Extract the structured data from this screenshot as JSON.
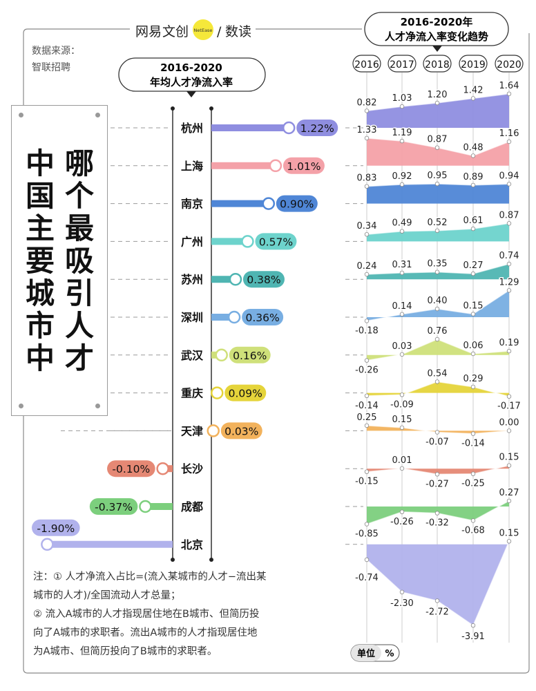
{
  "brand": {
    "left": "网易",
    "mid": "文创",
    "badge": "NetEase",
    "slash": "/",
    "right": "数读"
  },
  "source": {
    "line1": "数据来源：",
    "line2": "智联招聘"
  },
  "title": {
    "col1": "中国主要城市中",
    "col2": "哪个最吸引人才"
  },
  "bar_header": {
    "line1": "2016-2020",
    "line2": "年均人才净流入率"
  },
  "trend_header": {
    "line1": "2016-2020年",
    "line2": "人才净流入率变化趋势"
  },
  "unit": {
    "label": "单位",
    "value": "%"
  },
  "notes": [
    "注：① 人才净流入占比=(流入某城市的人才−流出某",
    "城市的人才)/全国流动人才总量；",
    "② 流入A城市的人才指现居住地在B城市、但简历投",
    "向了A城市的求职者。流出A城市的人才指现居住地",
    "为A城市、但简历投向了B城市的求职者。"
  ],
  "colors": {
    "杭州": "#8f8ee0",
    "上海": "#f4a1a8",
    "南京": "#4f86d6",
    "广州": "#6dd3cc",
    "苏州": "#4fb5b2",
    "深圳": "#78aee2",
    "武汉": "#cfe07a",
    "重庆": "#e5d43a",
    "天津": "#f2b25c",
    "长沙": "#e58874",
    "成都": "#7ccf7d",
    "北京": "#b1b2ec"
  },
  "chart_data": [
    {
      "type": "bar",
      "title": "2016-2020 年均人才净流入率",
      "categories": [
        "杭州",
        "上海",
        "南京",
        "广州",
        "苏州",
        "深圳",
        "武汉",
        "重庆",
        "天津",
        "长沙",
        "成都",
        "北京"
      ],
      "values": [
        1.22,
        1.01,
        0.9,
        0.57,
        0.38,
        0.36,
        0.16,
        0.09,
        0.03,
        -0.1,
        -0.37,
        -1.9
      ],
      "labels": [
        "1.22%",
        "1.01%",
        "0.90%",
        "0.57%",
        "0.38%",
        "0.36%",
        "0.16%",
        "0.09%",
        "0.03%",
        "-0.10%",
        "-0.37%",
        "-1.90%"
      ],
      "unit": "%"
    },
    {
      "type": "area",
      "title": "2016-2020年 人才净流入率变化趋势",
      "x": [
        "2016",
        "2017",
        "2018",
        "2019",
        "2020"
      ],
      "series": [
        {
          "name": "杭州",
          "values": [
            0.82,
            1.03,
            1.2,
            1.42,
            1.64
          ],
          "labels": [
            "0.82",
            "1.03",
            "1.20",
            "1.42",
            "1.64"
          ]
        },
        {
          "name": "上海",
          "values": [
            1.33,
            1.19,
            0.87,
            0.48,
            1.16
          ],
          "labels": [
            "1.33",
            "1.19",
            "0.87",
            "0.48",
            "1.16"
          ]
        },
        {
          "name": "南京",
          "values": [
            0.83,
            0.92,
            0.95,
            0.89,
            0.94
          ],
          "labels": [
            "0.83",
            "0.92",
            "0.95",
            "0.89",
            "0.94"
          ]
        },
        {
          "name": "广州",
          "values": [
            0.34,
            0.49,
            0.52,
            0.61,
            0.87
          ],
          "labels": [
            "0.34",
            "0.49",
            "0.52",
            "0.61",
            "0.87"
          ]
        },
        {
          "name": "苏州",
          "values": [
            0.24,
            0.31,
            0.35,
            0.27,
            0.74
          ],
          "labels": [
            "0.24",
            "0.31",
            "0.35",
            "0.27",
            "0.74"
          ]
        },
        {
          "name": "深圳",
          "values": [
            -0.18,
            0.14,
            0.4,
            0.15,
            1.29
          ],
          "labels": [
            "-0.18",
            "0.14",
            "0.40",
            "0.15",
            "1.29"
          ]
        },
        {
          "name": "武汉",
          "values": [
            -0.26,
            0.03,
            0.76,
            0.06,
            0.19
          ],
          "labels": [
            "-0.26",
            "0.03",
            "0.76",
            "0.06",
            "0.19"
          ]
        },
        {
          "name": "重庆",
          "values": [
            -0.14,
            -0.09,
            0.54,
            0.29,
            -0.17
          ],
          "labels": [
            "-0.14",
            "-0.09",
            "0.54",
            "0.29",
            "-0.17"
          ]
        },
        {
          "name": "天津",
          "values": [
            0.25,
            0.15,
            -0.07,
            -0.14,
            0.0
          ],
          "labels": [
            "0.25",
            "0.15",
            "-0.07",
            "-0.14",
            "0.00"
          ]
        },
        {
          "name": "长沙",
          "values": [
            -0.15,
            0.01,
            -0.27,
            -0.25,
            0.15
          ],
          "labels": [
            "-0.15",
            "0.01",
            "-0.27",
            "-0.25",
            "0.15"
          ]
        },
        {
          "name": "成都",
          "values": [
            -0.85,
            -0.26,
            -0.32,
            -0.68,
            0.27
          ],
          "labels": [
            "-0.85",
            "-0.26",
            "-0.32",
            "-0.68",
            "0.27"
          ]
        },
        {
          "name": "北京",
          "values": [
            -0.74,
            -2.3,
            -2.72,
            -3.91,
            0.15
          ],
          "labels": [
            "-0.74",
            "-2.30",
            "-2.72",
            "-3.91",
            "0.15"
          ]
        }
      ],
      "unit": "%"
    }
  ]
}
